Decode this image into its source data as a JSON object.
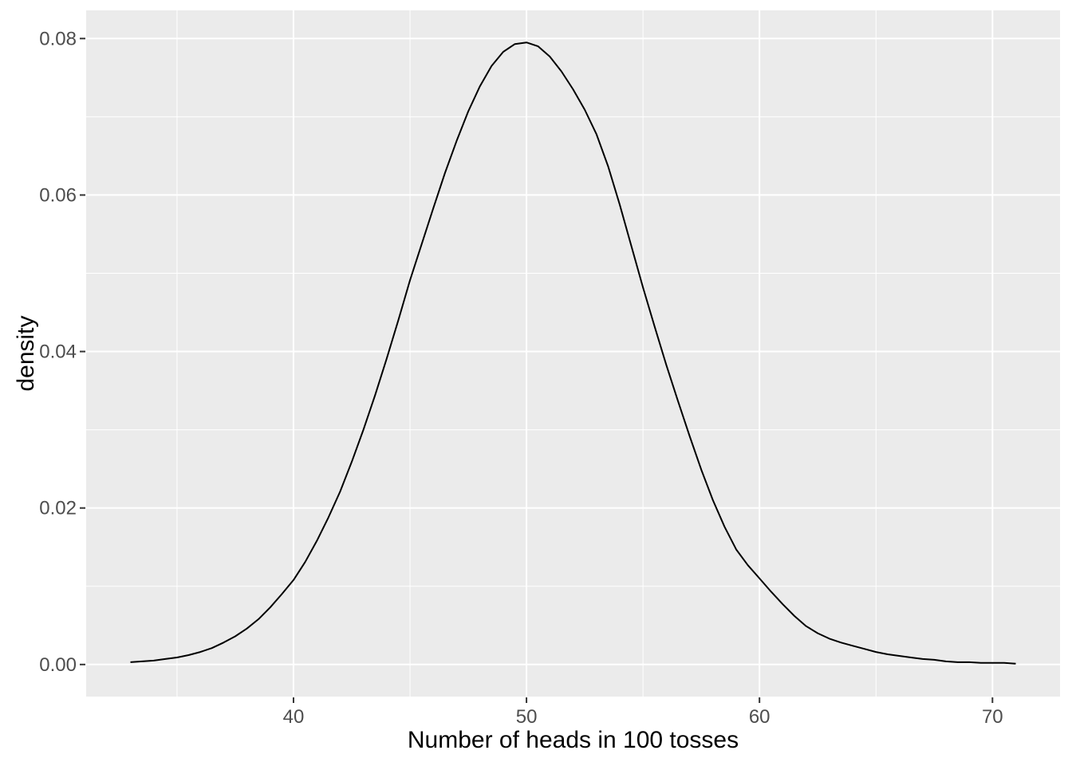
{
  "chart_data": {
    "type": "line",
    "title": "",
    "xlabel": "Number of heads in 100 tosses",
    "ylabel": "density",
    "grid": true,
    "legend": "none",
    "panel_style": "ggplot2-grey",
    "xlim": [
      31.1,
      72.9
    ],
    "ylim": [
      -0.0041,
      0.0836
    ],
    "x_ticks": [
      40,
      50,
      60,
      70
    ],
    "x_tick_labels": [
      "40",
      "50",
      "60",
      "70"
    ],
    "x_minor_ticks": [
      35,
      45,
      55,
      65
    ],
    "y_ticks": [
      0.0,
      0.02,
      0.04,
      0.06,
      0.08
    ],
    "y_tick_labels": [
      "0.00",
      "0.02",
      "0.04",
      "0.06",
      "0.08"
    ],
    "y_minor_ticks": [
      0.01,
      0.03,
      0.05,
      0.07
    ],
    "series": [
      {
        "name": "density",
        "points": [
          [
            33,
            0.0003
          ],
          [
            33.5,
            0.0004
          ],
          [
            34,
            0.0005
          ],
          [
            34.5,
            0.0007
          ],
          [
            35,
            0.0009
          ],
          [
            35.5,
            0.0012
          ],
          [
            36,
            0.0016
          ],
          [
            36.5,
            0.0021
          ],
          [
            37,
            0.0028
          ],
          [
            37.5,
            0.0036
          ],
          [
            38,
            0.0046
          ],
          [
            38.5,
            0.0058
          ],
          [
            39,
            0.0073
          ],
          [
            39.5,
            0.009
          ],
          [
            40,
            0.0108
          ],
          [
            40.5,
            0.0131
          ],
          [
            41,
            0.0158
          ],
          [
            41.5,
            0.0188
          ],
          [
            42,
            0.0221
          ],
          [
            42.5,
            0.0259
          ],
          [
            43,
            0.03
          ],
          [
            43.5,
            0.0344
          ],
          [
            44,
            0.0391
          ],
          [
            44.5,
            0.044
          ],
          [
            45,
            0.0491
          ],
          [
            45.5,
            0.0537
          ],
          [
            46,
            0.0583
          ],
          [
            46.5,
            0.0628
          ],
          [
            47,
            0.0669
          ],
          [
            47.5,
            0.0707
          ],
          [
            48,
            0.0739
          ],
          [
            48.5,
            0.0765
          ],
          [
            49,
            0.0783
          ],
          [
            49.5,
            0.0793
          ],
          [
            50,
            0.0795
          ],
          [
            50.5,
            0.079
          ],
          [
            51,
            0.0777
          ],
          [
            51.5,
            0.0758
          ],
          [
            52,
            0.0735
          ],
          [
            52.5,
            0.0709
          ],
          [
            53,
            0.0678
          ],
          [
            53.5,
            0.0637
          ],
          [
            54,
            0.0588
          ],
          [
            54.5,
            0.0535
          ],
          [
            55,
            0.0482
          ],
          [
            55.5,
            0.0432
          ],
          [
            56,
            0.0383
          ],
          [
            56.5,
            0.0337
          ],
          [
            57,
            0.0292
          ],
          [
            57.5,
            0.0249
          ],
          [
            58,
            0.021
          ],
          [
            58.5,
            0.0176
          ],
          [
            59,
            0.0147
          ],
          [
            59.5,
            0.0127
          ],
          [
            60,
            0.011
          ],
          [
            60.5,
            0.0093
          ],
          [
            61,
            0.0077
          ],
          [
            61.5,
            0.0062
          ],
          [
            62,
            0.0049
          ],
          [
            62.5,
            0.004
          ],
          [
            63,
            0.0033
          ],
          [
            63.5,
            0.0028
          ],
          [
            64,
            0.0024
          ],
          [
            64.5,
            0.002
          ],
          [
            65,
            0.0016
          ],
          [
            65.5,
            0.0013
          ],
          [
            66,
            0.0011
          ],
          [
            66.5,
            0.0009
          ],
          [
            67,
            0.0007
          ],
          [
            67.5,
            0.0006
          ],
          [
            68,
            0.0004
          ],
          [
            68.5,
            0.0003
          ],
          [
            69,
            0.0003
          ],
          [
            69.5,
            0.0002
          ],
          [
            70,
            0.0002
          ],
          [
            70.5,
            0.0002
          ],
          [
            71,
            0.0001
          ]
        ]
      }
    ]
  },
  "style": {
    "outer_bg": "#FFFFFF",
    "panel_bg": "#EBEBEB",
    "grid_color": "#FFFFFF",
    "line_color": "#000000",
    "tick_label_color": "#4D4D4D",
    "tick_mark_color": "#333333",
    "axis_title_color": "#000000"
  }
}
